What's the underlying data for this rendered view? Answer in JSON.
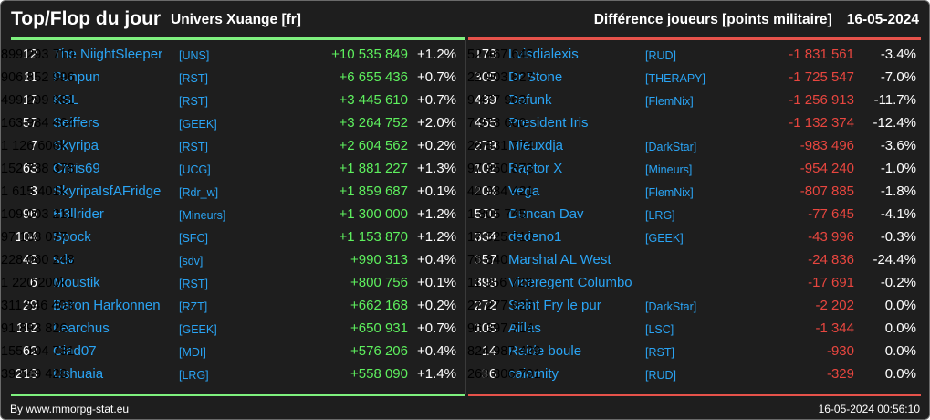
{
  "header": {
    "title": "Top/Flop du jour",
    "subtitle": "Univers Xuange [fr]",
    "right_title": "Différence joueurs [points militaire]",
    "date": "16-05-2024"
  },
  "colors": {
    "gain": "#5ef05e",
    "loss": "#e8463f",
    "name": "#2aa4f4",
    "background": "#1e1e1e"
  },
  "top": [
    {
      "rank": "12",
      "name": "The NiightSleeper",
      "alliance": "[UNS]",
      "points": "899 293 719",
      "diff": "+10 535 849",
      "pct": "+1.2%"
    },
    {
      "rank": "11",
      "name": "Punpun",
      "alliance": "[RST]",
      "points": "906 852 996",
      "diff": "+6 655 436",
      "pct": "+0.7%"
    },
    {
      "rank": "17",
      "name": "KSL",
      "alliance": "[RST]",
      "points": "499 299 981",
      "diff": "+3 445 610",
      "pct": "+0.7%"
    },
    {
      "rank": "57",
      "name": "Seiffers",
      "alliance": "[GEEK]",
      "points": "163 984 464",
      "diff": "+3 264 752",
      "pct": "+2.0%"
    },
    {
      "rank": "7",
      "name": "Skyripa",
      "alliance": "[RST]",
      "points": "1 126 606k",
      "diff": "+2 604 562",
      "pct": "+0.2%"
    },
    {
      "rank": "63",
      "name": "Chris69",
      "alliance": "[UCG]",
      "points": "152 788 378",
      "diff": "+1 881 227",
      "pct": "+1.3%"
    },
    {
      "rank": "3",
      "name": "SkyripaIsfAFridge",
      "alliance": "[Rdr_w]",
      "points": "1 615 401k",
      "diff": "+1 859 687",
      "pct": "+0.1%"
    },
    {
      "rank": "96",
      "name": "H3llrider",
      "alliance": "[Mineurs]",
      "points": "109 003 211",
      "diff": "+1 300 000",
      "pct": "+1.2%"
    },
    {
      "rank": "104",
      "name": "Spock",
      "alliance": "[SFC]",
      "points": "97 188 077",
      "diff": "+1 153 870",
      "pct": "+1.2%"
    },
    {
      "rank": "42",
      "name": "sdv",
      "alliance": "[sdv]",
      "points": "228 060 248",
      "diff": "+990 313",
      "pct": "+0.4%"
    },
    {
      "rank": "6",
      "name": "Moustik",
      "alliance": "[RST]",
      "points": "1 220 200k",
      "diff": "+800 756",
      "pct": "+0.1%"
    },
    {
      "rank": "29",
      "name": "Baron Harkonnen",
      "alliance": "[RZT]",
      "points": "311 546 403",
      "diff": "+662 168",
      "pct": "+0.2%"
    },
    {
      "rank": "112",
      "name": "Learchus",
      "alliance": "[GEEK]",
      "points": "91 893 826",
      "diff": "+650 931",
      "pct": "+0.7%"
    },
    {
      "rank": "62",
      "name": "Clad07",
      "alliance": "[MDI]",
      "points": "155 104 731",
      "diff": "+576 206",
      "pct": "+0.4%"
    },
    {
      "rank": "218",
      "name": "Ushuaia",
      "alliance": "[LRG]",
      "points": "39 549 428",
      "diff": "+558 090",
      "pct": "+1.4%"
    }
  ],
  "flop": [
    {
      "rank": "173",
      "name": "Lvisdialexis",
      "alliance": "[RUD]",
      "points": "52 467 645",
      "diff": "-1 831 561",
      "pct": "-3.4%"
    },
    {
      "rank": "305",
      "name": "Dr Stone",
      "alliance": "[THERAPY]",
      "points": "22 903 827",
      "diff": "-1 725 547",
      "pct": "-7.0%"
    },
    {
      "rank": "439",
      "name": "Dafunk",
      "alliance": "[FlemNix]",
      "points": "9 477 963",
      "diff": "-1 256 913",
      "pct": "-11.7%"
    },
    {
      "rank": "455",
      "name": "President Iris",
      "alliance": "",
      "points": "7 978 660",
      "diff": "-1 132 374",
      "pct": "-12.4%"
    },
    {
      "rank": "279",
      "name": "Mieuxdja",
      "alliance": "[DarkStar]",
      "points": "26 531 774",
      "diff": "-983 496",
      "pct": "-3.6%"
    },
    {
      "rank": "102",
      "name": "Raptor X",
      "alliance": "[Mineurs]",
      "points": "97 950 873",
      "diff": "-954 240",
      "pct": "-1.0%"
    },
    {
      "rank": "204",
      "name": "Vega",
      "alliance": "[FlemNix]",
      "points": "42 984 421",
      "diff": "-807 885",
      "pct": "-1.8%"
    },
    {
      "rank": "570",
      "name": "Duncan Dav",
      "alliance": "[LRG]",
      "points": "1 805 745",
      "diff": "-77 645",
      "pct": "-4.1%"
    },
    {
      "rank": "334",
      "name": "dedeno1",
      "alliance": "[GEEK]",
      "points": "17 525 310",
      "diff": "-43 996",
      "pct": "-0.3%"
    },
    {
      "rank": "657",
      "name": "Marshal AL West",
      "alliance": "",
      "points": "76 840",
      "diff": "-24 836",
      "pct": "-24.4%"
    },
    {
      "rank": "398",
      "name": "Viceregent Columbo",
      "alliance": "",
      "points": "11 956 723",
      "diff": "-17 691",
      "pct": "-0.2%"
    },
    {
      "rank": "272",
      "name": "Saint Fry le pur",
      "alliance": "[DarkStar]",
      "points": "27 277 928",
      "diff": "-2 202",
      "pct": "0.0%"
    },
    {
      "rank": "105",
      "name": "Aillas",
      "alliance": "[LSC]",
      "points": "96 397 714",
      "diff": "-1 344",
      "pct": "0.0%"
    },
    {
      "rank": "14",
      "name": "Raide boule",
      "alliance": "[RST]",
      "points": "824 987 429",
      "diff": "-930",
      "pct": "0.0%"
    },
    {
      "rank": "36",
      "name": "calamity",
      "alliance": "[RUD]",
      "points": "263 806 791",
      "diff": "-329",
      "pct": "0.0%"
    }
  ],
  "footer": {
    "credit": "By www.mmorpg-stat.eu",
    "timestamp": "16-05-2024 00:56:10"
  }
}
